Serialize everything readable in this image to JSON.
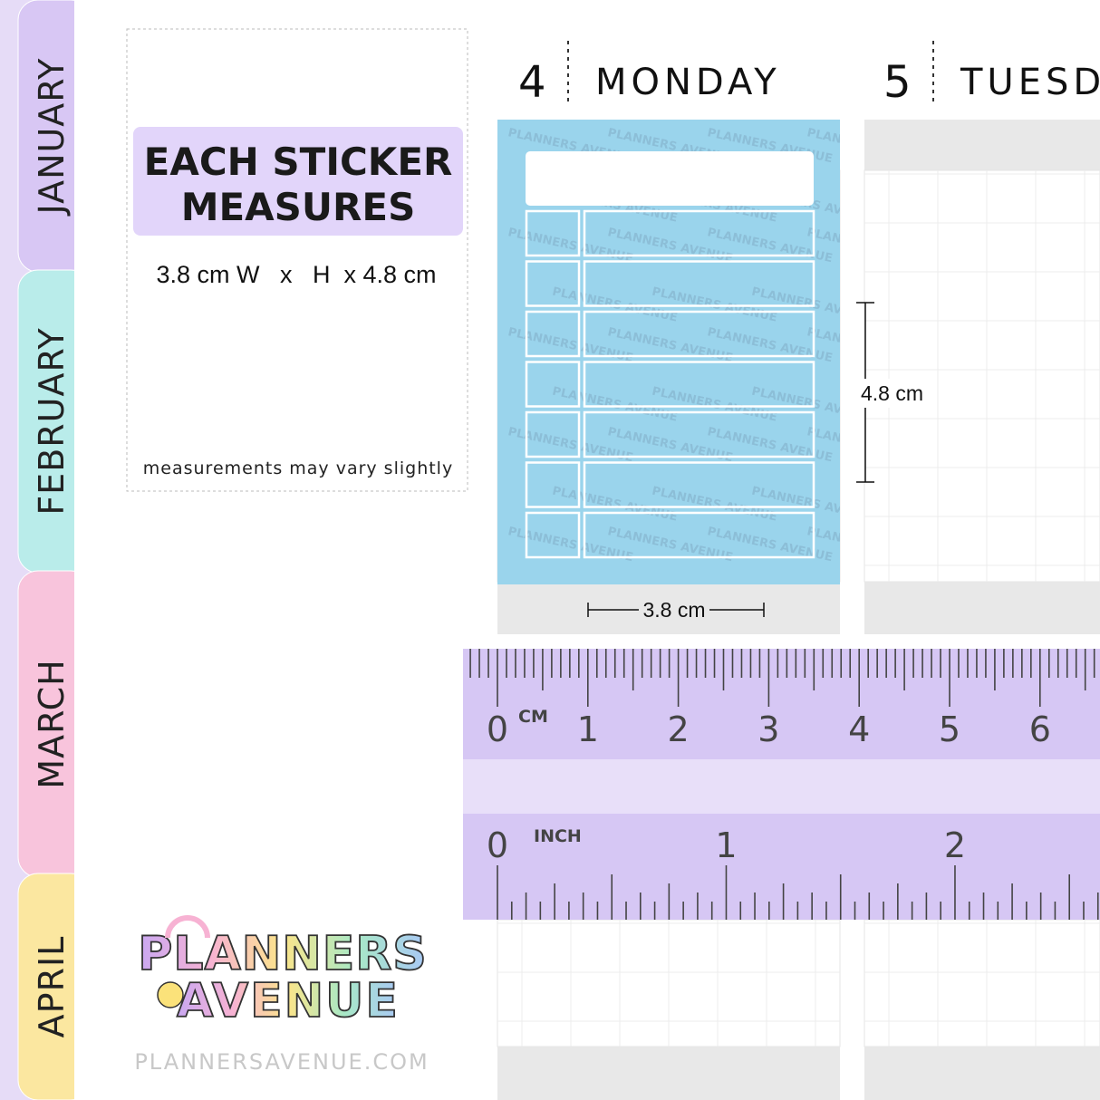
{
  "tabs": [
    "JANUARY",
    "FEBRUARY",
    "MARCH",
    "APRIL"
  ],
  "info": {
    "heading": [
      "EACH STICKER",
      "MEASURES"
    ],
    "size": "3.8 cm W   x   H  x 4.8 cm",
    "note": "measurements may vary slightly"
  },
  "days": [
    {
      "number": "4",
      "name": "MONDAY"
    },
    {
      "number": "5",
      "name": "TUESD"
    }
  ],
  "watermark": "PLANNERS AVENUE",
  "dimensions": {
    "height": "4.8 cm",
    "width": "3.8 cm"
  },
  "ruler": {
    "cm_unit": "CM",
    "cm_labels": [
      "0",
      "1",
      "2",
      "3",
      "4",
      "5",
      "6"
    ],
    "inch_unit": "INCH",
    "inch_labels": [
      "0",
      "1",
      "2"
    ]
  },
  "logo": [
    "PLANNERS",
    "AVENUE"
  ],
  "url": "PLANNERSAVENUE.COM"
}
